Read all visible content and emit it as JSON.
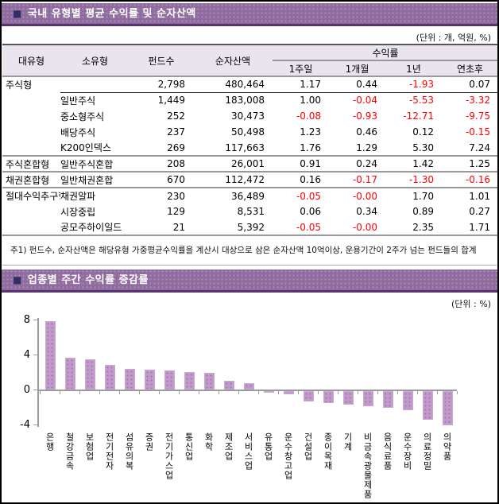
{
  "section_funds": {
    "bullet": "■",
    "title": "국내 유형별 평균 수익률 및 순자산액",
    "unit_note": "(단위 : 개, 억원, %)",
    "table": {
      "col_category": "대유형",
      "col_subcategory": "소유형",
      "col_fund_count": "펀드수",
      "col_net_assets": "순자산액",
      "col_returns_group": "수익률",
      "col_returns": [
        "1주일",
        "1개월",
        "1년",
        "연초후"
      ],
      "rows": [
        {
          "category": "주식형",
          "subcategory": "",
          "funds": "2,798",
          "assets": "480,464",
          "returns": [
            "1.17",
            "0.44",
            "-1.93",
            "0.07"
          ],
          "partial_rule_after": true
        },
        {
          "category": "",
          "subcategory": "일반주식",
          "funds": "1,449",
          "assets": "183,008",
          "returns": [
            "1.00",
            "-0.04",
            "-5.53",
            "-3.32"
          ]
        },
        {
          "category": "",
          "subcategory": "중소형주식",
          "funds": "252",
          "assets": "30,473",
          "returns": [
            "-0.08",
            "-0.93",
            "-12.71",
            "-9.75"
          ]
        },
        {
          "category": "",
          "subcategory": "배당주식",
          "funds": "237",
          "assets": "50,498",
          "returns": [
            "1.23",
            "0.46",
            "0.12",
            "-0.15"
          ]
        },
        {
          "category": "",
          "subcategory": "K200인덱스",
          "funds": "269",
          "assets": "117,663",
          "returns": [
            "1.76",
            "1.29",
            "5.30",
            "7.24"
          ],
          "group_rule_after": true
        },
        {
          "category": "주식혼합형",
          "subcategory": "일반주식혼합",
          "funds": "208",
          "assets": "26,001",
          "returns": [
            "0.91",
            "0.24",
            "1.42",
            "1.25"
          ],
          "group_rule_after": true
        },
        {
          "category": "채권혼합형",
          "subcategory": "일반채권혼합",
          "funds": "670",
          "assets": "112,472",
          "returns": [
            "0.16",
            "-0.17",
            "-1.30",
            "-0.16"
          ],
          "group_rule_after": true
        },
        {
          "category": "절대수익추구형",
          "subcategory": "채권알파",
          "funds": "230",
          "assets": "36,489",
          "returns": [
            "-0.05",
            "-0.00",
            "1.70",
            "1.01"
          ]
        },
        {
          "category": "",
          "subcategory": "시장중립",
          "funds": "129",
          "assets": "8,531",
          "returns": [
            "0.06",
            "0.34",
            "0.89",
            "0.27"
          ]
        },
        {
          "category": "",
          "subcategory": "공모주하이일드",
          "funds": "21",
          "assets": "5,392",
          "returns": [
            "-0.05",
            "-0.00",
            "2.35",
            "1.71"
          ],
          "group_rule_after": true
        }
      ],
      "footnote": "주1) 펀드수, 순자산액은 해당유형 가중평균수익률을 계산시 대상으로 삼은 순자산액 10억이상, 운용기간이 2주가 넘는 펀드들의 합계"
    }
  },
  "section_industry": {
    "bullet": "■",
    "title": "업종별 주간 수익률 증감률",
    "unit_note": "(단위 : %)"
  },
  "chart_data": {
    "type": "bar",
    "title": "업종별 주간 수익률 증감률",
    "categories": [
      "은행",
      "철강금속",
      "보험업",
      "전기전자",
      "섬유의복",
      "증권",
      "전기가스업",
      "통신업",
      "화학",
      "제조업",
      "서비스업",
      "유통업",
      "운수창고업",
      "건설업",
      "종이목재",
      "기계",
      "비금속광물제품",
      "음식료품",
      "운수장비",
      "의료정밀",
      "의약품"
    ],
    "values": [
      7.8,
      3.6,
      3.5,
      2.8,
      2.4,
      2.3,
      2.2,
      2.0,
      1.9,
      1.0,
      0.7,
      -0.1,
      -0.4,
      -1.2,
      -1.4,
      -1.5,
      -1.7,
      -1.9,
      -2.2,
      -3.3,
      -3.9
    ],
    "xlabel": "",
    "ylabel": "",
    "ylim": [
      -4,
      8
    ],
    "yticks": [
      8,
      4,
      0,
      -4
    ],
    "grid": false,
    "legend": "none",
    "bar_color": "#C09AC9",
    "bar_dot_color": "#AC6FB4"
  },
  "colors": {
    "banner_bg": "#8F6B9F",
    "banner_border": "#56356F",
    "banner_text": "#FFFFFF",
    "banner_bullet": "#2F2F66",
    "header_bg": "#E9E4ED",
    "negative_text": "#FF0000",
    "rule_gray": "#999999"
  }
}
